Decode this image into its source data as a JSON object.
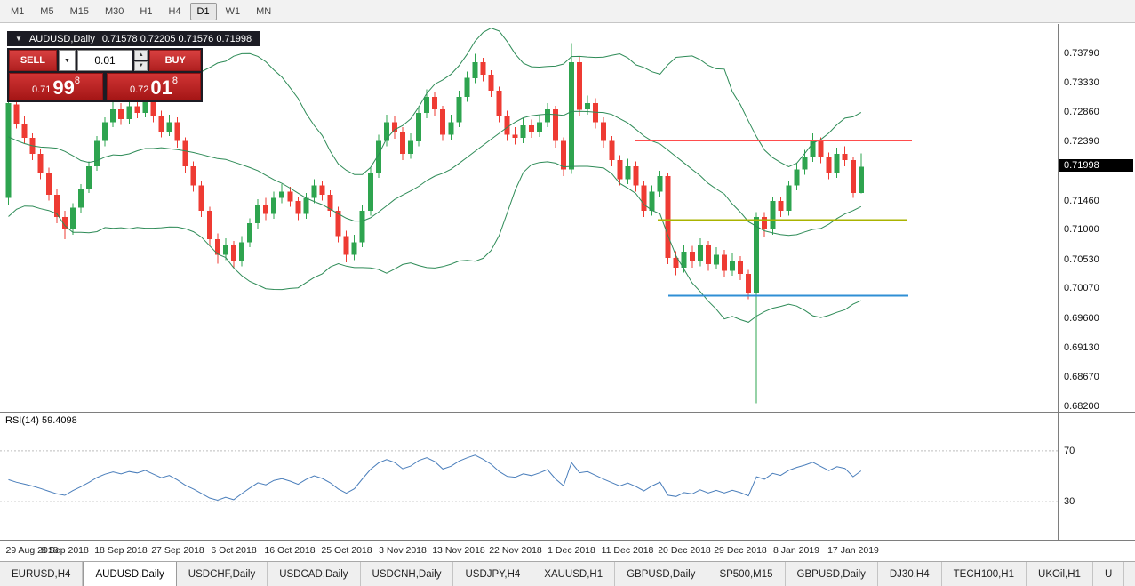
{
  "toolbar": {
    "timeframes": [
      "M1",
      "M5",
      "M15",
      "M30",
      "H1",
      "H4",
      "D1",
      "W1",
      "MN"
    ],
    "active": "D1"
  },
  "icons": {
    "collapse": "▼",
    "dropdown": "▼",
    "spin_up": "▲",
    "spin_down": "▼"
  },
  "chart": {
    "title": "AUDUSD,Daily",
    "ohlc_text": "0.71578 0.72205 0.71576 0.71998",
    "current_price": "0.71998",
    "trade_panel": {
      "sell_label": "SELL",
      "buy_label": "BUY",
      "volume": "0.01",
      "sell_price": {
        "small": "0.71",
        "big": "99",
        "sup": "8"
      },
      "buy_price": {
        "small": "0.72",
        "big": "01",
        "sup": "8"
      }
    },
    "axis_labels": [
      "0.73790",
      "0.73330",
      "0.72860",
      "0.72390",
      "0.71460",
      "0.71000",
      "0.70530",
      "0.70070",
      "0.69600",
      "0.69130",
      "0.68670",
      "0.68200"
    ]
  },
  "chart_data": {
    "type": "candlestick",
    "symbol": "AUDUSD",
    "timeframe": "Daily",
    "current_ohlc": {
      "open": 0.71578,
      "high": 0.72205,
      "low": 0.71576,
      "close": 0.71998
    },
    "price_range": [
      0.68116,
      0.74255
    ],
    "candles": [
      [
        0.715,
        0.7312,
        0.7138,
        0.73
      ],
      [
        0.7298,
        0.731,
        0.726,
        0.7268
      ],
      [
        0.7268,
        0.728,
        0.7236,
        0.7245
      ],
      [
        0.7245,
        0.7252,
        0.721,
        0.722
      ],
      [
        0.722,
        0.7228,
        0.718,
        0.719
      ],
      [
        0.719,
        0.7198,
        0.7146,
        0.7155
      ],
      [
        0.7155,
        0.7164,
        0.711,
        0.712
      ],
      [
        0.712,
        0.713,
        0.7085,
        0.71
      ],
      [
        0.71,
        0.7142,
        0.7092,
        0.7135
      ],
      [
        0.7135,
        0.7172,
        0.7126,
        0.7165
      ],
      [
        0.7165,
        0.7208,
        0.7158,
        0.72
      ],
      [
        0.72,
        0.7248,
        0.7193,
        0.724
      ],
      [
        0.724,
        0.7278,
        0.7232,
        0.727
      ],
      [
        0.727,
        0.7302,
        0.7262,
        0.729
      ],
      [
        0.729,
        0.73,
        0.7266,
        0.7275
      ],
      [
        0.7275,
        0.7308,
        0.7268,
        0.7295
      ],
      [
        0.7295,
        0.7306,
        0.7276,
        0.7285
      ],
      [
        0.7285,
        0.7315,
        0.7278,
        0.7305
      ],
      [
        0.7305,
        0.7312,
        0.727,
        0.728
      ],
      [
        0.728,
        0.7288,
        0.7246,
        0.7255
      ],
      [
        0.7255,
        0.7282,
        0.7248,
        0.727
      ],
      [
        0.727,
        0.7278,
        0.723,
        0.724
      ],
      [
        0.724,
        0.7246,
        0.719,
        0.72
      ],
      [
        0.72,
        0.7208,
        0.716,
        0.717
      ],
      [
        0.717,
        0.7176,
        0.712,
        0.713
      ],
      [
        0.713,
        0.7136,
        0.7075,
        0.7085
      ],
      [
        0.7085,
        0.7094,
        0.7046,
        0.706
      ],
      [
        0.706,
        0.7086,
        0.7052,
        0.7075
      ],
      [
        0.7075,
        0.7082,
        0.704,
        0.705
      ],
      [
        0.705,
        0.709,
        0.7042,
        0.708
      ],
      [
        0.708,
        0.7118,
        0.7072,
        0.711
      ],
      [
        0.711,
        0.7148,
        0.7102,
        0.714
      ],
      [
        0.714,
        0.715,
        0.7115,
        0.7125
      ],
      [
        0.7125,
        0.716,
        0.7117,
        0.715
      ],
      [
        0.715,
        0.7172,
        0.7142,
        0.716
      ],
      [
        0.716,
        0.7168,
        0.7136,
        0.7145
      ],
      [
        0.7145,
        0.7152,
        0.7115,
        0.7125
      ],
      [
        0.7125,
        0.7158,
        0.7117,
        0.715
      ],
      [
        0.715,
        0.718,
        0.7142,
        0.717
      ],
      [
        0.717,
        0.7178,
        0.7146,
        0.7155
      ],
      [
        0.7155,
        0.7162,
        0.712,
        0.713
      ],
      [
        0.713,
        0.7136,
        0.708,
        0.709
      ],
      [
        0.709,
        0.7098,
        0.7048,
        0.706
      ],
      [
        0.706,
        0.7092,
        0.7052,
        0.708
      ],
      [
        0.708,
        0.7138,
        0.7072,
        0.713
      ],
      [
        0.713,
        0.7198,
        0.7122,
        0.719
      ],
      [
        0.719,
        0.725,
        0.7182,
        0.724
      ],
      [
        0.724,
        0.7282,
        0.7232,
        0.727
      ],
      [
        0.727,
        0.728,
        0.7244,
        0.7255
      ],
      [
        0.7255,
        0.7262,
        0.721,
        0.722
      ],
      [
        0.722,
        0.7252,
        0.7212,
        0.724
      ],
      [
        0.724,
        0.7295,
        0.7232,
        0.7285
      ],
      [
        0.7285,
        0.7322,
        0.7276,
        0.731
      ],
      [
        0.731,
        0.7318,
        0.728,
        0.729
      ],
      [
        0.729,
        0.7296,
        0.724,
        0.725
      ],
      [
        0.725,
        0.7282,
        0.7242,
        0.727
      ],
      [
        0.727,
        0.732,
        0.7262,
        0.731
      ],
      [
        0.731,
        0.735,
        0.7302,
        0.734
      ],
      [
        0.734,
        0.7378,
        0.7332,
        0.7365
      ],
      [
        0.7365,
        0.7372,
        0.7335,
        0.7345
      ],
      [
        0.7345,
        0.7352,
        0.731,
        0.732
      ],
      [
        0.732,
        0.7326,
        0.727,
        0.728
      ],
      [
        0.728,
        0.7288,
        0.724,
        0.725
      ],
      [
        0.725,
        0.7262,
        0.7235,
        0.7245
      ],
      [
        0.7245,
        0.7276,
        0.7237,
        0.7265
      ],
      [
        0.7265,
        0.7274,
        0.7245,
        0.7255
      ],
      [
        0.7255,
        0.7282,
        0.7247,
        0.727
      ],
      [
        0.727,
        0.73,
        0.7262,
        0.729
      ],
      [
        0.729,
        0.7296,
        0.723,
        0.724
      ],
      [
        0.724,
        0.7246,
        0.7185,
        0.7195
      ],
      [
        0.7195,
        0.7395,
        0.7188,
        0.7365
      ],
      [
        0.7365,
        0.7375,
        0.728,
        0.729
      ],
      [
        0.729,
        0.7312,
        0.7282,
        0.73
      ],
      [
        0.73,
        0.7308,
        0.726,
        0.727
      ],
      [
        0.727,
        0.7278,
        0.723,
        0.724
      ],
      [
        0.724,
        0.7248,
        0.72,
        0.721
      ],
      [
        0.721,
        0.7218,
        0.717,
        0.718
      ],
      [
        0.718,
        0.7212,
        0.7172,
        0.72
      ],
      [
        0.72,
        0.7208,
        0.716,
        0.717
      ],
      [
        0.717,
        0.7176,
        0.712,
        0.713
      ],
      [
        0.713,
        0.717,
        0.7122,
        0.716
      ],
      [
        0.716,
        0.7193,
        0.7152,
        0.7185
      ],
      [
        0.7185,
        0.719,
        0.7045,
        0.7055
      ],
      [
        0.7055,
        0.7066,
        0.7028,
        0.704
      ],
      [
        0.704,
        0.7075,
        0.7032,
        0.7065
      ],
      [
        0.7065,
        0.7074,
        0.704,
        0.705
      ],
      [
        0.705,
        0.7086,
        0.7042,
        0.7075
      ],
      [
        0.7075,
        0.7082,
        0.7035,
        0.7045
      ],
      [
        0.7045,
        0.7072,
        0.7037,
        0.706
      ],
      [
        0.706,
        0.7068,
        0.7025,
        0.7035
      ],
      [
        0.7035,
        0.7062,
        0.7027,
        0.705
      ],
      [
        0.705,
        0.7058,
        0.702,
        0.703
      ],
      [
        0.703,
        0.7036,
        0.699,
        0.7
      ],
      [
        0.7,
        0.7128,
        0.6825,
        0.712
      ],
      [
        0.712,
        0.7128,
        0.7088,
        0.71
      ],
      [
        0.71,
        0.7152,
        0.7092,
        0.7145
      ],
      [
        0.7145,
        0.7152,
        0.712,
        0.713
      ],
      [
        0.713,
        0.7178,
        0.7122,
        0.717
      ],
      [
        0.717,
        0.7205,
        0.7162,
        0.7195
      ],
      [
        0.7195,
        0.7226,
        0.7187,
        0.7215
      ],
      [
        0.7215,
        0.7252,
        0.7207,
        0.724
      ],
      [
        0.724,
        0.7246,
        0.7205,
        0.7215
      ],
      [
        0.7215,
        0.7222,
        0.718,
        0.719
      ],
      [
        0.719,
        0.723,
        0.7182,
        0.722
      ],
      [
        0.722,
        0.7232,
        0.72,
        0.721
      ],
      [
        0.721,
        0.7216,
        0.715,
        0.7158
      ],
      [
        0.71578,
        0.72205,
        0.71576,
        0.71998
      ]
    ],
    "indicators": {
      "bollinger": {
        "period": 20,
        "deviation": 2,
        "color": "#2E8B57",
        "seed_closes": [
          0.739,
          0.734,
          0.729,
          0.723,
          0.717,
          0.714,
          0.72,
          0.727,
          0.732,
          0.726,
          0.719,
          0.715,
          0.722,
          0.729,
          0.725,
          0.719,
          0.723,
          0.728,
          0.723
        ]
      },
      "rsi": {
        "period": 14,
        "value": "59.4098",
        "label": "RSI(14) 59.4098",
        "levels": [
          70,
          30
        ],
        "color": "#4A7EBB"
      }
    },
    "hlines": [
      {
        "price": 0.724,
        "color": "#FF4D4D",
        "width": 1,
        "x1": 0.6,
        "x2": 0.862
      },
      {
        "price": 0.7115,
        "color": "#AAB300",
        "width": 2,
        "x1": 0.622,
        "x2": 0.857
      },
      {
        "price": 0.6995,
        "color": "#2F8FD5",
        "width": 2,
        "x1": 0.632,
        "x2": 0.859
      }
    ],
    "x_labels": [
      {
        "idx": 0,
        "label": "29 Aug 2018"
      },
      {
        "idx": 7,
        "label": "8 Sep 2018"
      },
      {
        "idx": 14,
        "label": "18 Sep 2018"
      },
      {
        "idx": 21,
        "label": "27 Sep 2018"
      },
      {
        "idx": 28,
        "label": "6 Oct 2018"
      },
      {
        "idx": 35,
        "label": "16 Oct 2018"
      },
      {
        "idx": 42,
        "label": "25 Oct 2018"
      },
      {
        "idx": 49,
        "label": "3 Nov 2018"
      },
      {
        "idx": 56,
        "label": "13 Nov 2018"
      },
      {
        "idx": 63,
        "label": "22 Nov 2018"
      },
      {
        "idx": 70,
        "label": "1 Dec 2018"
      },
      {
        "idx": 77,
        "label": "11 Dec 2018"
      },
      {
        "idx": 84,
        "label": "20 Dec 2018"
      },
      {
        "idx": 91,
        "label": "29 Dec 2018"
      },
      {
        "idx": 98,
        "label": "8 Jan 2019"
      },
      {
        "idx": 105,
        "label": "17 Jan 2019"
      }
    ]
  },
  "rsi_axis_labels": [
    "70",
    "30"
  ],
  "tabs": {
    "items": [
      "EURUSD,H4",
      "AUDUSD,Daily",
      "USDCHF,Daily",
      "USDCAD,Daily",
      "USDCNH,Daily",
      "USDJPY,H4",
      "XAUUSD,H1",
      "GBPUSD,Daily",
      "SP500,M15",
      "GBPUSD,Daily",
      "DJ30,H4",
      "TECH100,H1",
      "UKOil,H1",
      "U"
    ],
    "active_index": 1
  },
  "colors": {
    "bull": "#2EA44F",
    "bear": "#EE3B33",
    "levels": "#BDBDBD",
    "badge_bg": "#000000"
  }
}
